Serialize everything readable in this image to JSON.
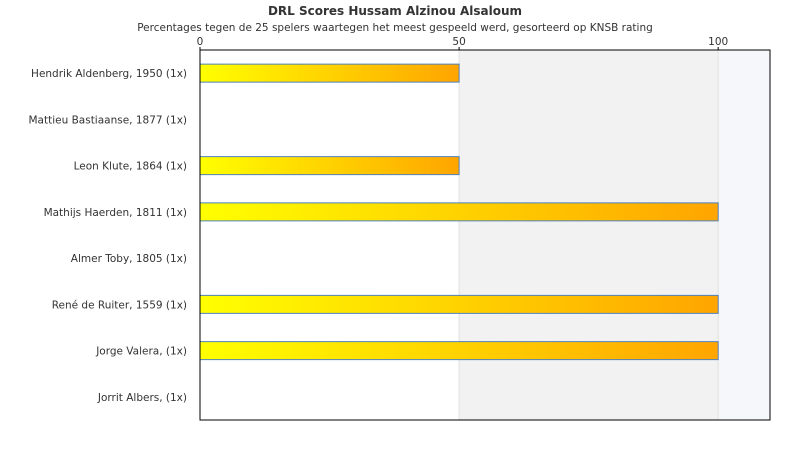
{
  "chart_data": {
    "type": "bar",
    "orientation": "horizontal",
    "title": "DRL Scores Hussam Alzinou Alsaloum",
    "subtitle": "Percentages tegen de 25 spelers waartegen het meest gespeeld werd, gesorteerd op KNSB rating",
    "categories": [
      "Hendrik Aldenberg, 1950 (1x)",
      "Mattieu Bastiaanse, 1877 (1x)",
      "Leon Klute, 1864 (1x)",
      "Mathijs Haerden, 1811 (1x)",
      "Almer Toby, 1805 (1x)",
      "René de Ruiter, 1559 (1x)",
      "Jorge Valera,  (1x)",
      "Jorrit Albers,  (1x)"
    ],
    "values": [
      50,
      0,
      50,
      100,
      0,
      100,
      100,
      0
    ],
    "xlim": [
      0,
      110
    ],
    "xticks": [
      "0",
      "50",
      "100"
    ],
    "xtick_values": [
      0,
      50,
      100
    ],
    "axis_position": "top",
    "grid": true,
    "colors": {
      "bar_start": "#ffff00",
      "bar_end": "#ffa500",
      "bar_stroke": "#4f81bd",
      "band_shade": "#f2f2f2",
      "band_shade_light": "#f6f7fb",
      "grid_line": "#e0e0e0",
      "axis_line": "#000000"
    }
  }
}
